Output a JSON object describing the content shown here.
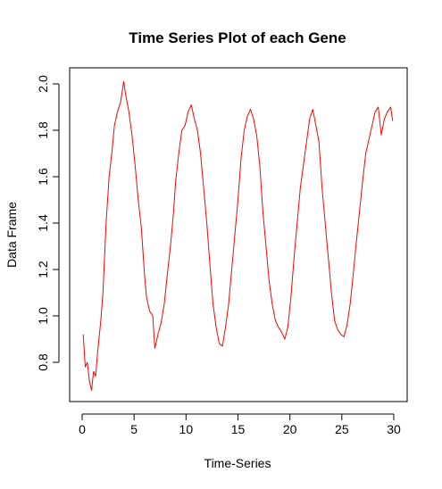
{
  "chart_data": {
    "type": "line",
    "title": "Time Series Plot of each Gene",
    "xlabel": "Time-Series",
    "ylabel": "Data Frame",
    "xlim": [
      0,
      30
    ],
    "ylim": [
      0.65,
      2.05
    ],
    "x_ticks": [
      "0",
      "5",
      "10",
      "15",
      "20",
      "25",
      "30"
    ],
    "y_ticks": [
      "0.8",
      "1.0",
      "1.2",
      "1.4",
      "1.6",
      "1.8",
      "2.0"
    ],
    "grid": false,
    "legend": "none",
    "series": [
      {
        "color": "#ff0000",
        "x": [
          0.1,
          0.3,
          0.5,
          0.7,
          0.9,
          1.1,
          1.3,
          1.5,
          1.8,
          2.0,
          2.3,
          2.6,
          2.9,
          3.1,
          3.4,
          3.7,
          4.0,
          4.2,
          4.5,
          4.8,
          5.1,
          5.4,
          5.7,
          6.0,
          6.2,
          6.5,
          6.8,
          7.0,
          7.3,
          7.6,
          7.9,
          8.2,
          8.5,
          8.8,
          9.0,
          9.3,
          9.6,
          9.9,
          10.2,
          10.5,
          10.8,
          11.1,
          11.4,
          11.7,
          12.0,
          12.3,
          12.6,
          12.9,
          13.2,
          13.5,
          13.8,
          14.1,
          14.4,
          14.7,
          15.0,
          15.3,
          15.6,
          15.9,
          16.2,
          16.5,
          16.8,
          17.1,
          17.4,
          17.7,
          18.0,
          18.3,
          18.6,
          18.9,
          19.2,
          19.5,
          19.8,
          20.1,
          20.4,
          20.7,
          21.0,
          21.3,
          21.6,
          21.9,
          22.2,
          22.5,
          22.8,
          23.1,
          23.4,
          23.7,
          24.0,
          24.3,
          24.6,
          24.9,
          25.2,
          25.5,
          25.8,
          26.1,
          26.4,
          26.7,
          27.0,
          27.3,
          27.6,
          27.9,
          28.2,
          28.5,
          28.8,
          29.1,
          29.4,
          29.7,
          29.9
        ],
        "y": [
          0.92,
          0.78,
          0.8,
          0.72,
          0.68,
          0.76,
          0.74,
          0.85,
          0.98,
          1.1,
          1.4,
          1.6,
          1.72,
          1.82,
          1.88,
          1.92,
          2.01,
          1.95,
          1.88,
          1.78,
          1.65,
          1.5,
          1.38,
          1.18,
          1.08,
          1.02,
          1.0,
          0.86,
          0.92,
          0.97,
          1.05,
          1.18,
          1.3,
          1.45,
          1.58,
          1.7,
          1.8,
          1.82,
          1.88,
          1.91,
          1.85,
          1.8,
          1.7,
          1.55,
          1.4,
          1.22,
          1.05,
          0.95,
          0.88,
          0.87,
          0.95,
          1.05,
          1.2,
          1.35,
          1.5,
          1.68,
          1.8,
          1.86,
          1.89,
          1.85,
          1.78,
          1.65,
          1.45,
          1.3,
          1.15,
          1.05,
          0.98,
          0.95,
          0.93,
          0.9,
          0.95,
          1.08,
          1.25,
          1.4,
          1.55,
          1.65,
          1.75,
          1.85,
          1.89,
          1.82,
          1.75,
          1.55,
          1.4,
          1.25,
          1.1,
          0.98,
          0.94,
          0.92,
          0.91,
          0.96,
          1.05,
          1.18,
          1.32,
          1.45,
          1.58,
          1.7,
          1.76,
          1.82,
          1.88,
          1.9,
          1.78,
          1.85,
          1.88,
          1.9,
          1.84
        ]
      }
    ]
  }
}
